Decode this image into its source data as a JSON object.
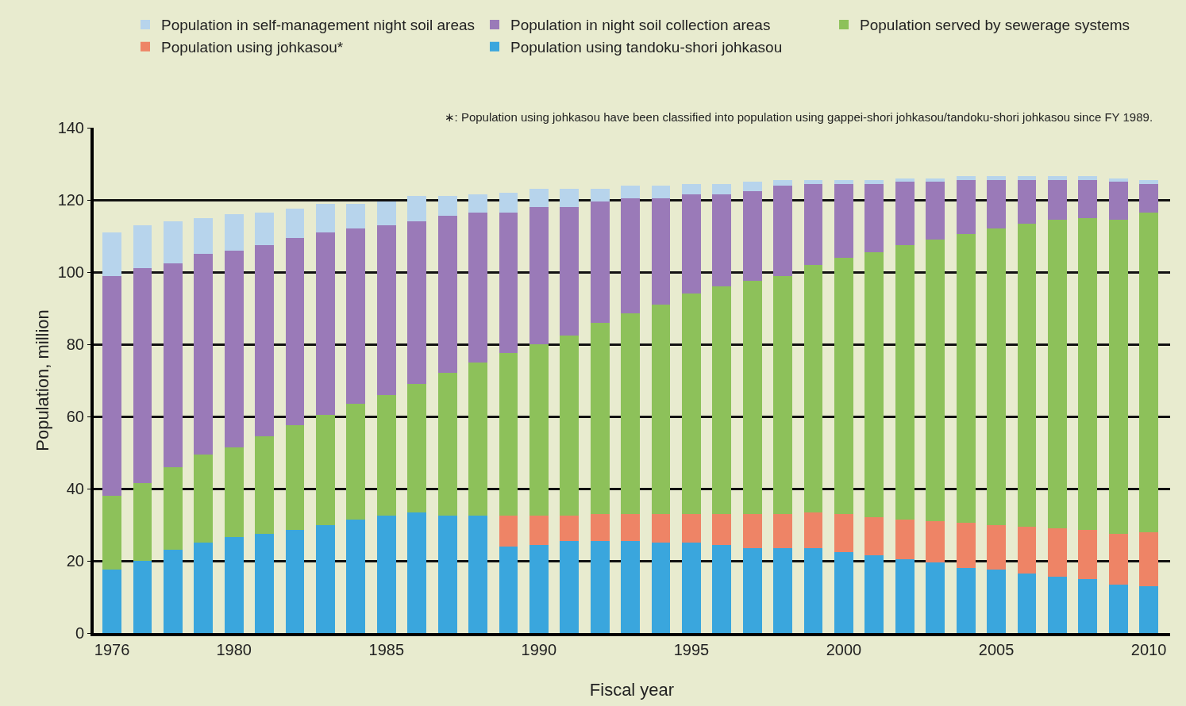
{
  "chart_data": {
    "type": "bar",
    "stacked": true,
    "xlabel": "Fiscal year",
    "ylabel": "Population, million",
    "annotations": [
      "∗: Population using johkasou have been classified into population using gappei-shori johkasou/tandoku-shori johkasou since FY 1989."
    ],
    "x": [
      1976,
      1977,
      1978,
      1979,
      1980,
      1981,
      1982,
      1983,
      1984,
      1985,
      1986,
      1987,
      1988,
      1989,
      1990,
      1991,
      1992,
      1993,
      1994,
      1995,
      1996,
      1997,
      1998,
      1999,
      2000,
      2001,
      2002,
      2003,
      2004,
      2005,
      2006,
      2007,
      2008,
      2009,
      2010
    ],
    "xlim": [
      1975.4,
      2010.7
    ],
    "xticks": [
      1976,
      1980,
      1985,
      1990,
      1995,
      2000,
      2005,
      2010
    ],
    "ylim": [
      0,
      140
    ],
    "yticks": [
      0,
      20,
      40,
      60,
      80,
      100,
      120,
      140
    ],
    "grid": "y",
    "legend": "top",
    "series": [
      {
        "name": "Population using tandoku-shori johkasou",
        "color": "#3aa6dd",
        "values": [
          17.5,
          20,
          23,
          25,
          26.5,
          27.5,
          28.5,
          30,
          31.5,
          32.5,
          33.5,
          32.5,
          32.5,
          24,
          24.5,
          25.5,
          25.5,
          25.5,
          25,
          25,
          24.5,
          23.5,
          23.5,
          23.5,
          22.5,
          21.5,
          20.5,
          19.5,
          18,
          17.5,
          16.5,
          15.5,
          15,
          13.5,
          13
        ]
      },
      {
        "name": "Population using johkasou*",
        "color": "#ee8466",
        "values": [
          null,
          null,
          null,
          null,
          null,
          null,
          null,
          null,
          null,
          null,
          null,
          null,
          null,
          8.5,
          8,
          7,
          7.5,
          7.5,
          8,
          8,
          8.5,
          9.5,
          9.5,
          10,
          10.5,
          10.5,
          11,
          11.5,
          12.5,
          12.5,
          13,
          13.5,
          13.5,
          14,
          15
        ]
      },
      {
        "name": "Population served by sewerage systems",
        "color": "#8dc15a",
        "values": [
          20.5,
          21.5,
          23,
          24.5,
          25,
          27,
          29,
          30.5,
          32,
          33.5,
          35.5,
          39.5,
          42.5,
          45,
          47.5,
          50,
          53,
          55.5,
          58,
          61,
          63,
          64.5,
          66,
          68.5,
          71,
          73.5,
          76,
          78,
          80,
          82,
          84,
          85.5,
          86.5,
          87,
          88.5
        ]
      },
      {
        "name": "Population in night soil collection areas",
        "color": "#9a7ab8",
        "values": [
          61,
          59.5,
          56.5,
          55.5,
          54.5,
          53,
          52,
          50.5,
          48.5,
          47,
          45,
          43.5,
          41.5,
          39,
          38,
          35.5,
          33.5,
          32,
          29.5,
          27.5,
          25.5,
          25,
          25,
          22.5,
          20.5,
          19,
          17.5,
          16,
          15,
          13.5,
          12,
          11,
          10.5,
          10.5,
          8
        ]
      },
      {
        "name": "Population in self-management night soil areas",
        "color": "#b7d4ec",
        "values": [
          12,
          12,
          11.5,
          10,
          10,
          9,
          8,
          8,
          7,
          6.5,
          7,
          5.5,
          5,
          5.5,
          5,
          5,
          3.5,
          3.5,
          3.5,
          3,
          3,
          2.5,
          1.5,
          1,
          1,
          1,
          1,
          1,
          1,
          1,
          1,
          1,
          1,
          1,
          1
        ]
      }
    ]
  }
}
